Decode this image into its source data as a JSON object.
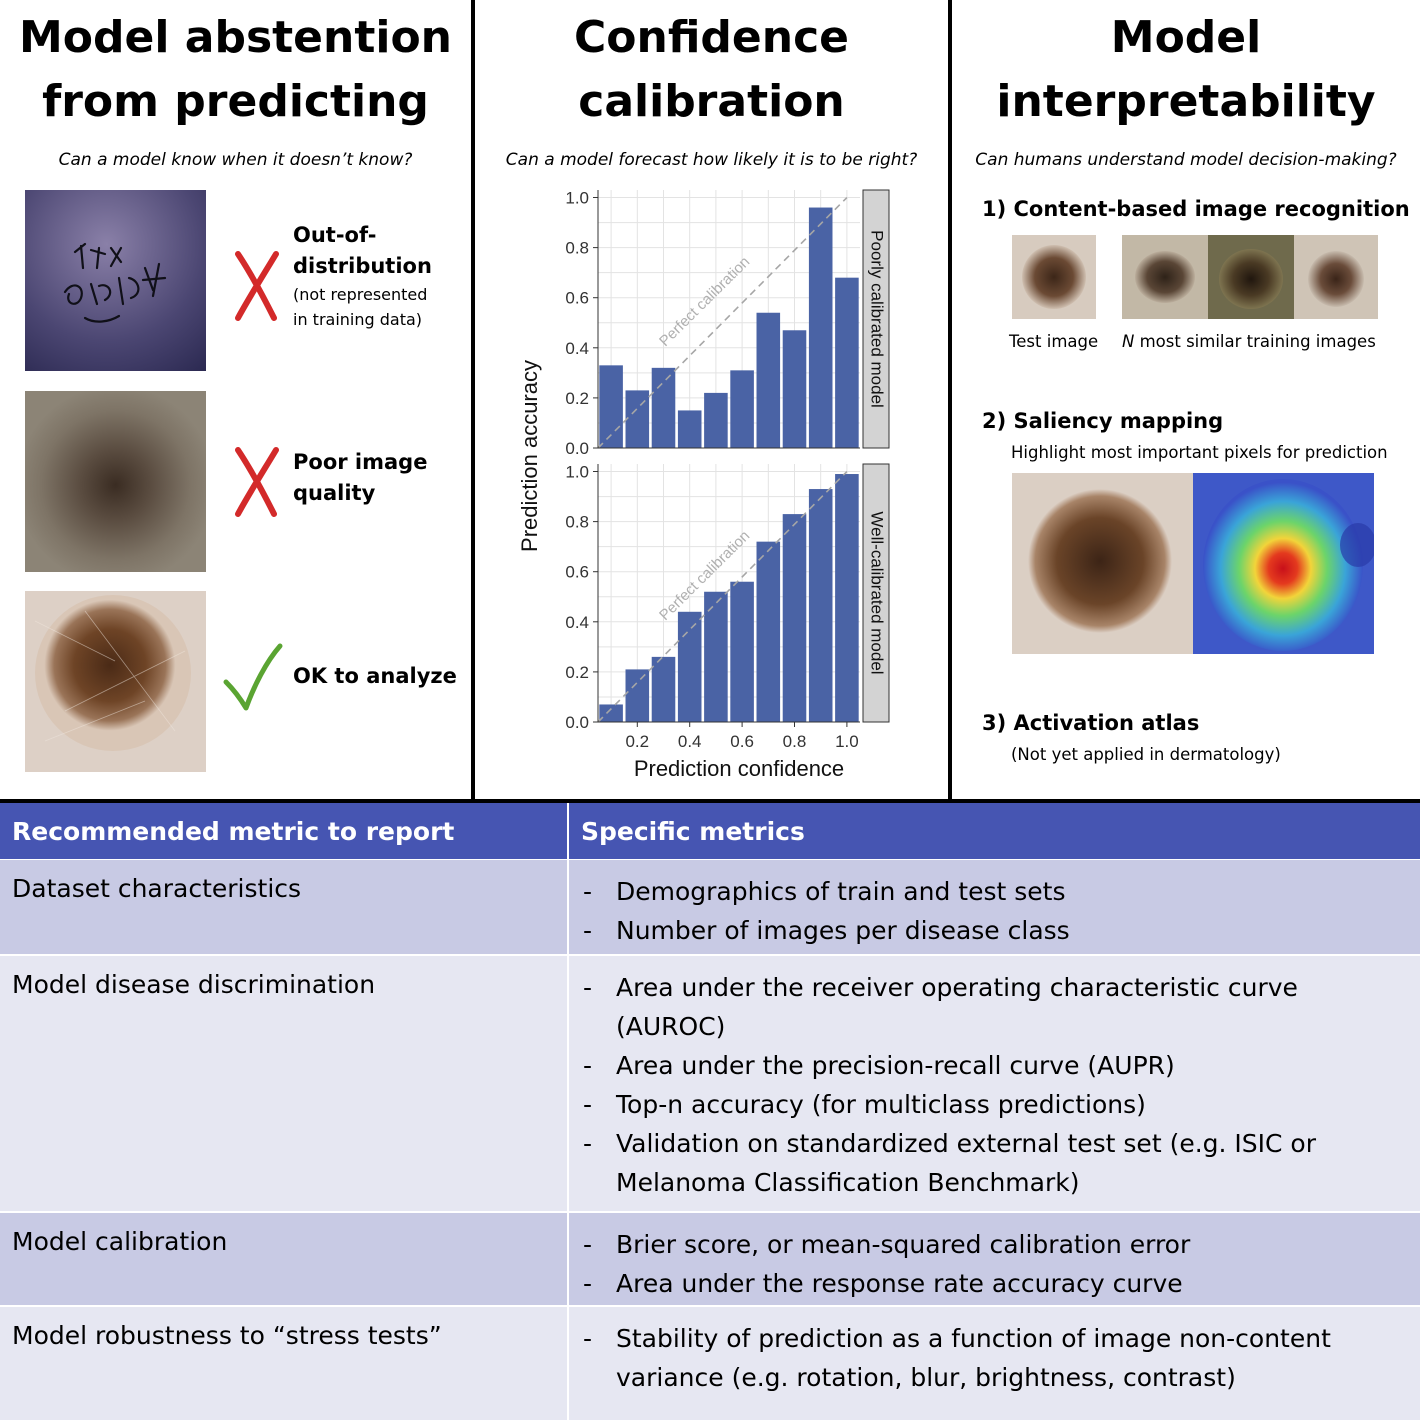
{
  "panel1": {
    "title_line1": "Model abstention",
    "title_line2": "from predicting",
    "subtitle": "Can a model know when it doesn’t know?",
    "items": [
      {
        "mark": "cross",
        "label_line1": "Out-of-",
        "label_line2": "distribution",
        "note_line1": "(not represented",
        "note_line2": "in training data)"
      },
      {
        "mark": "cross",
        "label_line1": "Poor image",
        "label_line2": "quality"
      },
      {
        "mark": "check",
        "label_line1": "OK to analyze"
      }
    ],
    "colors": {
      "cross": "#d32a2a",
      "check": "#5aa432"
    }
  },
  "panel2": {
    "title_line1": "Confidence",
    "title_line2": "calibration",
    "subtitle": "Can a model forecast how likely it is to be right?",
    "chart_data": {
      "type": "bar",
      "xlabel": "Prediction confidence",
      "ylabel": "Prediction accuracy",
      "x": [
        0.1,
        0.2,
        0.3,
        0.4,
        0.5,
        0.6,
        0.7,
        0.8,
        0.9,
        1.0
      ],
      "xlim": [
        0.05,
        1.05
      ],
      "ylim": [
        0,
        1.03
      ],
      "xticks": [
        "0.2",
        "0.4",
        "0.6",
        "0.8",
        "1.0"
      ],
      "yticks": [
        "0.0",
        "0.2",
        "0.4",
        "0.6",
        "0.8",
        "1.0"
      ],
      "diagonal_label": "Perfect calibration",
      "grid": true,
      "bar_color": "#4a63a5",
      "facets": [
        {
          "name": "Poorly calibrated model",
          "values": [
            0.33,
            0.23,
            0.32,
            0.15,
            0.22,
            0.31,
            0.54,
            0.47,
            0.96,
            0.68
          ]
        },
        {
          "name": "Well-calibrated model",
          "values": [
            0.07,
            0.21,
            0.26,
            0.44,
            0.52,
            0.56,
            0.72,
            0.83,
            0.93,
            0.99
          ]
        }
      ]
    }
  },
  "panel3": {
    "title_line1": "Model",
    "title_line2": "interpretability",
    "subtitle": "Can humans understand model decision-making?",
    "s1_heading": "1) Content-based image recognition",
    "s1_test_label": "Test image",
    "s1_similar_n": "N",
    "s1_similar_label": " most similar training images",
    "s2_heading": "2) Saliency mapping",
    "s2_desc": "Highlight most important pixels for prediction",
    "s3_heading": "3) Activation atlas",
    "s3_desc": "(Not yet applied in dermatology)"
  },
  "table": {
    "headers": [
      "Recommended metric to report",
      "Specific metrics"
    ],
    "rows": [
      {
        "metric": "Dataset characteristics",
        "details": [
          "Demographics of train and test sets",
          "Number of images per disease class"
        ]
      },
      {
        "metric": "Model disease discrimination",
        "details": [
          "Area under the receiver operating characteristic curve (AUROC)",
          "Area under the precision-recall curve (AUPR)",
          "Top-n accuracy (for multiclass predictions)",
          "Validation on standardized external test set (e.g. ISIC or Melanoma Classification Benchmark)"
        ]
      },
      {
        "metric": "Model calibration",
        "details": [
          "Brier score, or mean-squared calibration error",
          "Area under the response rate accuracy curve"
        ]
      },
      {
        "metric": "Model robustness to “stress tests”",
        "details": [
          "Stability of prediction as a function of image non-content variance (e.g. rotation, blur, brightness, contrast)"
        ]
      }
    ],
    "colors": {
      "header": "#4655b2",
      "row_dark": "#c8cae4",
      "row_light": "#e6e7f2"
    }
  }
}
